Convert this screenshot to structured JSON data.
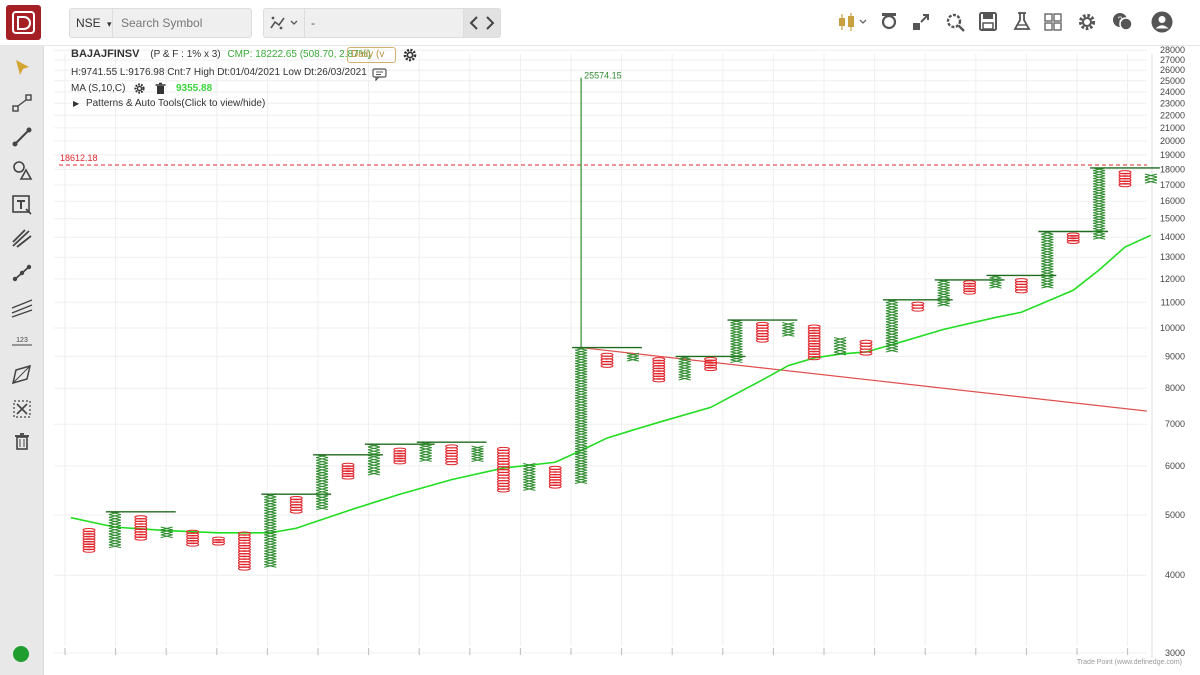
{
  "topbar": {
    "exchange": "NSE",
    "search_placeholder": "Search Symbol",
    "compare_value": "-",
    "icons": [
      "candlestick-icon",
      "indicator-icon",
      "expand-icon",
      "settings-search-icon",
      "save-icon",
      "flask-icon",
      "grid-layout-icon",
      "gear-icon",
      "chat-icon",
      "user-icon"
    ]
  },
  "toolbar": {
    "tools": [
      "cursor-icon",
      "line-tool-icon",
      "trendline-icon",
      "shape-tool-icon",
      "text-tool-icon",
      "fork-tool-icon",
      "ray-tool-icon",
      "channel-tool-icon",
      "measure-tool-icon",
      "polygon-tool-icon",
      "magnet-tool-icon",
      "trash-icon"
    ]
  },
  "header": {
    "symbol": "BAJAJFINSV",
    "chart_type": "(P & F : 1% x 3)",
    "cmp": "CMP: 18222.65 (508.70, 2.87%)",
    "timeframe": "Daily (v",
    "stats": "H:9741.55 L:9176.98 Cnt:7 High Dt:01/04/2021 Low Dt:26/03/2021",
    "ma_label": "MA (S,10,C)",
    "ma_value": "9355.88",
    "patterns_toggle": "Patterns & Auto Tools(Click to view/hide)"
  },
  "colors": {
    "up": "#2e8b2e",
    "down": "#e0262c",
    "ma": "#22dd22",
    "trend": "#e05050",
    "accent": "#a52024"
  },
  "chart_data": {
    "type": "point-and-figure",
    "yscale": "log",
    "ylim": [
      3000,
      28000
    ],
    "yticks": [
      3000,
      4000,
      5000,
      6000,
      7000,
      8000,
      9000,
      10000,
      11000,
      12000,
      13000,
      14000,
      15000,
      16000,
      17000,
      18000,
      19000,
      20000,
      21000,
      22000,
      23000,
      24000,
      25000,
      26000,
      27000,
      28000
    ],
    "columns": [
      {
        "dir": "down",
        "high": 4750,
        "low": 4360
      },
      {
        "dir": "up",
        "high": 5060,
        "low": 4430
      },
      {
        "dir": "down",
        "high": 4980,
        "low": 4560
      },
      {
        "dir": "up",
        "high": 4780,
        "low": 4600
      },
      {
        "dir": "down",
        "high": 4720,
        "low": 4460
      },
      {
        "dir": "down",
        "high": 4600,
        "low": 4480
      },
      {
        "dir": "down",
        "high": 4690,
        "low": 4080
      },
      {
        "dir": "up",
        "high": 5400,
        "low": 4120
      },
      {
        "dir": "down",
        "high": 5350,
        "low": 5040
      },
      {
        "dir": "up",
        "high": 6250,
        "low": 5100
      },
      {
        "dir": "down",
        "high": 6050,
        "low": 5720
      },
      {
        "dir": "up",
        "high": 6500,
        "low": 5800
      },
      {
        "dir": "down",
        "high": 6400,
        "low": 6050
      },
      {
        "dir": "up",
        "high": 6550,
        "low": 6100
      },
      {
        "dir": "down",
        "high": 6480,
        "low": 6030
      },
      {
        "dir": "up",
        "high": 6450,
        "low": 6100
      },
      {
        "dir": "down",
        "high": 6420,
        "low": 5450
      },
      {
        "dir": "up",
        "high": 6050,
        "low": 5480
      },
      {
        "dir": "down",
        "high": 5980,
        "low": 5530
      },
      {
        "dir": "up",
        "high": 9300,
        "low": 5620
      },
      {
        "dir": "down",
        "high": 9100,
        "low": 8650
      },
      {
        "dir": "up",
        "high": 9100,
        "low": 8850
      },
      {
        "dir": "down",
        "high": 8950,
        "low": 8200
      },
      {
        "dir": "up",
        "high": 9000,
        "low": 8250
      },
      {
        "dir": "down",
        "high": 8950,
        "low": 8550
      },
      {
        "dir": "up",
        "high": 10300,
        "low": 8800
      },
      {
        "dir": "down",
        "high": 10200,
        "low": 9500
      },
      {
        "dir": "up",
        "high": 10200,
        "low": 9700
      },
      {
        "dir": "down",
        "high": 10100,
        "low": 8900
      },
      {
        "dir": "up",
        "high": 9650,
        "low": 9050
      },
      {
        "dir": "down",
        "high": 9550,
        "low": 9050
      },
      {
        "dir": "up",
        "high": 11100,
        "low": 9150
      },
      {
        "dir": "down",
        "high": 11000,
        "low": 10650
      },
      {
        "dir": "up",
        "high": 11950,
        "low": 10850
      },
      {
        "dir": "down",
        "high": 11900,
        "low": 11350
      },
      {
        "dir": "up",
        "high": 12150,
        "low": 11600
      },
      {
        "dir": "down",
        "high": 12000,
        "low": 11400
      },
      {
        "dir": "up",
        "high": 14300,
        "low": 11600
      },
      {
        "dir": "down",
        "high": 14200,
        "low": 13700
      },
      {
        "dir": "up",
        "high": 18100,
        "low": 13900
      },
      {
        "dir": "down",
        "high": 17900,
        "low": 16900
      },
      {
        "dir": "up",
        "high": 17700,
        "low": 17100
      }
    ],
    "ma": [
      [
        -0.7,
        4950
      ],
      [
        1,
        4780
      ],
      [
        3,
        4720
      ],
      [
        5,
        4680
      ],
      [
        7,
        4680
      ],
      [
        8,
        4760
      ],
      [
        10,
        5080
      ],
      [
        12,
        5400
      ],
      [
        14,
        5700
      ],
      [
        16,
        5950
      ],
      [
        18,
        6080
      ],
      [
        19,
        6350
      ],
      [
        20,
        6650
      ],
      [
        21,
        6850
      ],
      [
        22,
        7050
      ],
      [
        24,
        7450
      ],
      [
        26,
        8250
      ],
      [
        27,
        8700
      ],
      [
        28,
        8950
      ],
      [
        29,
        9080
      ],
      [
        30,
        9150
      ],
      [
        31,
        9400
      ],
      [
        33,
        9950
      ],
      [
        35,
        10400
      ],
      [
        36,
        10600
      ],
      [
        38,
        11500
      ],
      [
        39,
        12400
      ],
      [
        40,
        13500
      ],
      [
        41,
        14100
      ]
    ],
    "trendline": {
      "from": [
        19,
        9300
      ],
      "to": [
        42,
        7350
      ]
    },
    "resistance": 18300,
    "resistance_label": "18612.18",
    "peak_label": "25574.15",
    "peak_value": 25300,
    "annotation": "Trade Point (www.definedge.com)"
  }
}
